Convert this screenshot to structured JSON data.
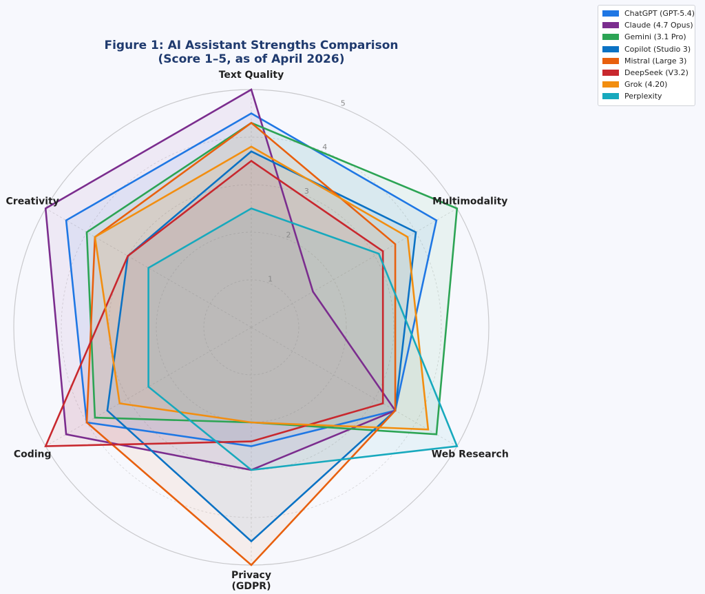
{
  "chart_data": {
    "type": "radar",
    "title_lines": [
      "Figure 1: AI Assistant Strengths Comparison",
      "(Score 1–5, as of April 2026)"
    ],
    "axes": [
      [
        "Text Quality"
      ],
      [
        "Multimodality"
      ],
      [
        "Web Research"
      ],
      [
        "Privacy",
        "(GDPR)"
      ],
      [
        "Coding"
      ],
      [
        "Creativity"
      ]
    ],
    "rlim": [
      0,
      5
    ],
    "ticks": [
      "1",
      "2",
      "3",
      "4",
      "5"
    ],
    "grid": true,
    "legend_position": "top-right",
    "series": [
      {
        "name": "ChatGPT (GPT-5.4)",
        "color": "#1f77e4",
        "values": [
          4.5,
          4.5,
          3.5,
          2.5,
          4.0,
          4.5
        ]
      },
      {
        "name": "Claude (4.7 Opus)",
        "color": "#7b2d8e",
        "values": [
          5.0,
          1.5,
          3.5,
          3.0,
          4.5,
          5.0
        ]
      },
      {
        "name": "Gemini (3.1 Pro)",
        "color": "#2ca454",
        "values": [
          4.3,
          5.0,
          4.5,
          2.0,
          3.8,
          4.0
        ]
      },
      {
        "name": "Copilot (Studio 3)",
        "color": "#0b72c4",
        "values": [
          3.7,
          4.0,
          3.5,
          4.5,
          3.5,
          3.0
        ]
      },
      {
        "name": "Mistral (Large 3)",
        "color": "#e8600e",
        "values": [
          4.3,
          3.5,
          3.5,
          5.0,
          4.0,
          3.8
        ]
      },
      {
        "name": "DeepSeek (V3.2)",
        "color": "#c8282e",
        "values": [
          3.5,
          3.2,
          3.2,
          2.4,
          5.0,
          3.0
        ]
      },
      {
        "name": "Grok (4.20)",
        "color": "#f28e10",
        "values": [
          3.8,
          3.8,
          4.3,
          2.0,
          3.2,
          3.8
        ]
      },
      {
        "name": "Perplexity",
        "color": "#17a9bd",
        "values": [
          2.5,
          3.1,
          5.0,
          3.0,
          2.5,
          2.5
        ]
      }
    ]
  }
}
